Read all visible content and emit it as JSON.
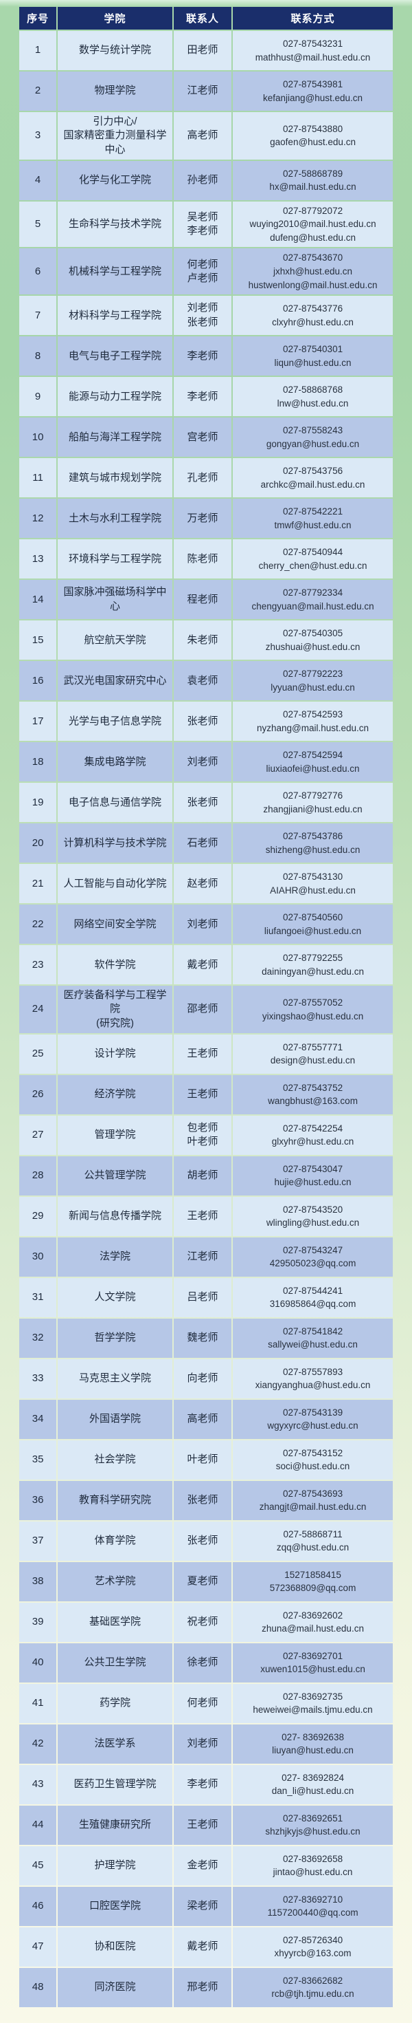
{
  "table": {
    "headers": [
      "序号",
      "学院",
      "联系人",
      "联系方式"
    ],
    "rows": [
      {
        "no": "1",
        "school": "数学与统计学院",
        "contact": "田老师",
        "info": "027-87543231\nmathhust@mail.hust.edu.cn"
      },
      {
        "no": "2",
        "school": "物理学院",
        "contact": "江老师",
        "info": "027-87543981\nkefanjiang@hust.edu.cn"
      },
      {
        "no": "3",
        "school": "引力中心/\n国家精密重力测量科学中心",
        "contact": "高老师",
        "info": "027-87543880\ngaofen@hust.edu.cn"
      },
      {
        "no": "4",
        "school": "化学与化工学院",
        "contact": "孙老师",
        "info": "027-58868789\nhx@mail.hust.edu.cn"
      },
      {
        "no": "5",
        "school": "生命科学与技术学院",
        "contact": "吴老师\n李老师",
        "info": "027-87792072\nwuying2010@mail.hust.edu.cn\ndufeng@hust.edu.cn"
      },
      {
        "no": "6",
        "school": "机械科学与工程学院",
        "contact": "何老师\n卢老师",
        "info": "027-87543670\njxhxh@hust.edu.cn\nhustwenlong@mail.hust.edu.cn"
      },
      {
        "no": "7",
        "school": "材料科学与工程学院",
        "contact": "刘老师\n张老师",
        "info": "027-87543776\nclxyhr@hust.edu.cn"
      },
      {
        "no": "8",
        "school": "电气与电子工程学院",
        "contact": "李老师",
        "info": "027-87540301\nliqun@hust.edu.cn"
      },
      {
        "no": "9",
        "school": "能源与动力工程学院",
        "contact": "李老师",
        "info": "027-58868768\nlnw@hust.edu.cn"
      },
      {
        "no": "10",
        "school": "船舶与海洋工程学院",
        "contact": "宫老师",
        "info": "027-87558243\ngongyan@hust.edu.cn"
      },
      {
        "no": "11",
        "school": "建筑与城市规划学院",
        "contact": "孔老师",
        "info": "027-87543756\narchkc@mail.hust.edu.cn"
      },
      {
        "no": "12",
        "school": "土木与水利工程学院",
        "contact": "万老师",
        "info": "027-87542221\ntmwf@hust.edu.cn"
      },
      {
        "no": "13",
        "school": "环境科学与工程学院",
        "contact": "陈老师",
        "info": "027-87540944\ncherry_chen@hust.edu.cn"
      },
      {
        "no": "14",
        "school": "国家脉冲强磁场科学中心",
        "contact": "程老师",
        "info": "027-87792334\nchengyuan@mail.hust.edu.cn"
      },
      {
        "no": "15",
        "school": "航空航天学院",
        "contact": "朱老师",
        "info": "027-87540305\nzhushuai@hust.edu.cn"
      },
      {
        "no": "16",
        "school": "武汉光电国家研究中心",
        "contact": "袁老师",
        "info": "027-87792223\nlyyuan@hust.edu.cn"
      },
      {
        "no": "17",
        "school": "光学与电子信息学院",
        "contact": "张老师",
        "info": "027-87542593\nnyzhang@mail.hust.edu.cn"
      },
      {
        "no": "18",
        "school": "集成电路学院",
        "contact": "刘老师",
        "info": "027-87542594\nliuxiaofei@hust.edu.cn"
      },
      {
        "no": "19",
        "school": "电子信息与通信学院",
        "contact": "张老师",
        "info": "027-87792776\nzhangjiani@hust.edu.cn"
      },
      {
        "no": "20",
        "school": "计算机科学与技术学院",
        "contact": "石老师",
        "info": "027-87543786\nshizheng@hust.edu.cn"
      },
      {
        "no": "21",
        "school": "人工智能与自动化学院",
        "contact": "赵老师",
        "info": "027-87543130\nAIAHR@hust.edu.cn"
      },
      {
        "no": "22",
        "school": "网络空间安全学院",
        "contact": "刘老师",
        "info": "027-87540560\nliufangoei@hust.edu.cn"
      },
      {
        "no": "23",
        "school": "软件学院",
        "contact": "戴老师",
        "info": "027-87792255\ndainingyan@hust.edu.cn"
      },
      {
        "no": "24",
        "school": "医疗装备科学与工程学院\n(研究院)",
        "contact": "邵老师",
        "info": "027-87557052\nyixingshao@hust.edu.cn"
      },
      {
        "no": "25",
        "school": "设计学院",
        "contact": "王老师",
        "info": "027-87557771\ndesign@hust.edu.cn"
      },
      {
        "no": "26",
        "school": "经济学院",
        "contact": "王老师",
        "info": "027-87543752\nwangbhust@163.com"
      },
      {
        "no": "27",
        "school": "管理学院",
        "contact": "包老师\n叶老师",
        "info": "027-87542254\nglxyhr@hust.edu.cn"
      },
      {
        "no": "28",
        "school": "公共管理学院",
        "contact": "胡老师",
        "info": "027-87543047\nhujie@hust.edu.cn"
      },
      {
        "no": "29",
        "school": "新闻与信息传播学院",
        "contact": "王老师",
        "info": "027-87543520\nwlingling@hust.edu.cn"
      },
      {
        "no": "30",
        "school": "法学院",
        "contact": "江老师",
        "info": "027-87543247\n429505023@qq.com"
      },
      {
        "no": "31",
        "school": "人文学院",
        "contact": "吕老师",
        "info": "027-87544241\n316985864@qq.com"
      },
      {
        "no": "32",
        "school": "哲学学院",
        "contact": "魏老师",
        "info": "027-87541842\nsallywei@hust.edu.cn"
      },
      {
        "no": "33",
        "school": "马克思主义学院",
        "contact": "向老师",
        "info": "027-87557893\nxiangyanghua@hust.edu.cn"
      },
      {
        "no": "34",
        "school": "外国语学院",
        "contact": "高老师",
        "info": "027-87543139\nwgyxyrc@hust.edu.cn"
      },
      {
        "no": "35",
        "school": "社会学院",
        "contact": "叶老师",
        "info": "027-87543152\nsoci@hust.edu.cn"
      },
      {
        "no": "36",
        "school": "教育科学研究院",
        "contact": "张老师",
        "info": "027-87543693\nzhangjt@mail.hust.edu.cn"
      },
      {
        "no": "37",
        "school": "体育学院",
        "contact": "张老师",
        "info": "027-58868711\nzqq@hust.edu.cn"
      },
      {
        "no": "38",
        "school": "艺术学院",
        "contact": "夏老师",
        "info": "15271858415\n572368809@qq.com"
      },
      {
        "no": "39",
        "school": "基础医学院",
        "contact": "祝老师",
        "info": "027-83692602\nzhuna@mail.hust.edu.cn"
      },
      {
        "no": "40",
        "school": "公共卫生学院",
        "contact": "徐老师",
        "info": "027-83692701\nxuwen1015@hust.edu.cn"
      },
      {
        "no": "41",
        "school": "药学院",
        "contact": "何老师",
        "info": "027-83692735\nheweiwei@mails.tjmu.edu.cn"
      },
      {
        "no": "42",
        "school": "法医学系",
        "contact": "刘老师",
        "info": "027- 83692638\nliuyan@hust.edu.cn"
      },
      {
        "no": "43",
        "school": "医药卫生管理学院",
        "contact": "李老师",
        "info": "027- 83692824\ndan_li@hust.edu.cn"
      },
      {
        "no": "44",
        "school": "生殖健康研究所",
        "contact": "王老师",
        "info": "027-83692651\nshzhjkyjs@hust.edu.cn"
      },
      {
        "no": "45",
        "school": "护理学院",
        "contact": "金老师",
        "info": "027-83692658\njintao@hust.edu.cn"
      },
      {
        "no": "46",
        "school": "口腔医学院",
        "contact": "梁老师",
        "info": "027-83692710\n1157200440@qq.com"
      },
      {
        "no": "47",
        "school": "协和医院",
        "contact": "戴老师",
        "info": "027-85726340\nxhyyrcb@163.com"
      },
      {
        "no": "48",
        "school": "同济医院",
        "contact": "邢老师",
        "info": "027-83662682\nrcb@tjh.tjmu.edu.cn"
      }
    ]
  },
  "colors": {
    "header_bg": "#1a2e6b",
    "row_light": "#dbe9f6",
    "row_dark": "#b6c7e7",
    "bg_top_green": "#a6d6a9",
    "bg_bottom_cream": "#f9f9e9"
  }
}
